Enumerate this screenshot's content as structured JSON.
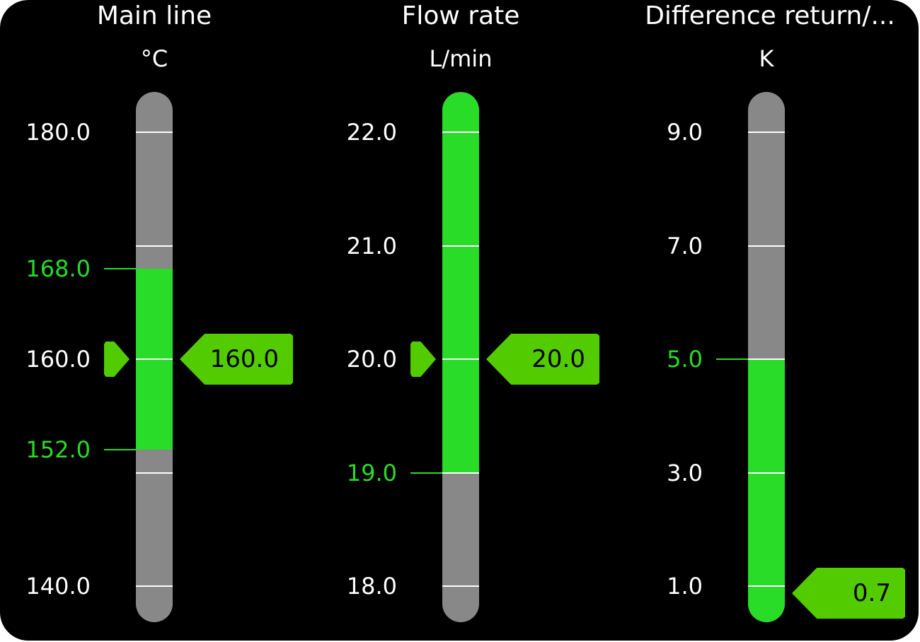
{
  "colors": {
    "bar": "#888888",
    "fill": "#28dc28",
    "marker": "#52cc00",
    "limit_text": "#28dc28",
    "label": "#ffffff"
  },
  "gauges": [
    {
      "title": "Main line",
      "unit": "°C",
      "min": 140,
      "max": 180,
      "ticks": [
        180,
        170,
        160,
        150,
        140
      ],
      "labels": [
        "180.0",
        "160.0",
        "140.0"
      ],
      "label_values": [
        180,
        160,
        140
      ],
      "limits": [
        {
          "value": 152,
          "label": "152.0"
        },
        {
          "value": 168,
          "label": "168.0"
        }
      ],
      "fill_range": [
        152,
        168
      ],
      "value": 160,
      "value_label": "160.0",
      "show_setpoint_marker": true
    },
    {
      "title": "Flow rate",
      "unit": "L/min",
      "min": 18,
      "max": 22,
      "ticks": [
        22,
        21,
        20,
        19,
        18
      ],
      "labels": [
        "22.0",
        "21.0",
        "20.0",
        "18.0"
      ],
      "label_values": [
        22,
        21,
        20,
        18
      ],
      "limits": [
        {
          "value": 19,
          "label": "19.0"
        }
      ],
      "fill_range": [
        19,
        22.35
      ],
      "value": 20,
      "value_label": "20.0",
      "show_setpoint_marker": true
    },
    {
      "title": "Difference return/...",
      "unit": "K",
      "min": 1,
      "max": 9,
      "ticks": [
        9,
        7,
        5,
        3,
        1
      ],
      "labels": [
        "9.0",
        "7.0",
        "3.0",
        "1.0"
      ],
      "label_values": [
        9,
        7,
        3,
        1
      ],
      "limits": [
        {
          "value": 5,
          "label": "5.0"
        }
      ],
      "fill_range": [
        0.35,
        5
      ],
      "value": 0.7,
      "value_label": "0.7",
      "show_setpoint_marker": false
    }
  ]
}
